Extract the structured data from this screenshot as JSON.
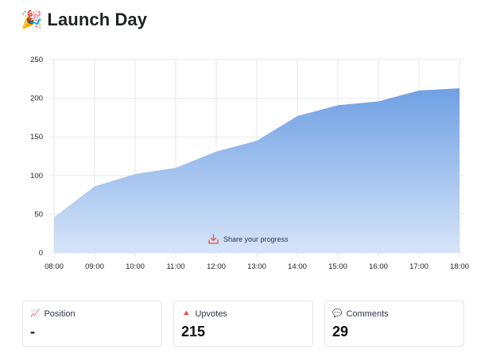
{
  "header": {
    "title": "Launch Day",
    "emoji": "🎉"
  },
  "share": {
    "label": "Share your progress",
    "icon": "download-icon",
    "color": "#e8543f"
  },
  "chart_data": {
    "type": "area",
    "categories": [
      "08:00",
      "09:00",
      "10:00",
      "11:00",
      "12:00",
      "13:00",
      "14:00",
      "15:00",
      "16:00",
      "17:00",
      "18:00"
    ],
    "series": [
      {
        "values": [
          46,
          86,
          102,
          110,
          131,
          145,
          177,
          191,
          196,
          210,
          213
        ]
      }
    ],
    "xlabel": "",
    "ylabel": "",
    "yticks": [
      "0",
      "50",
      "100",
      "150",
      "200",
      "250"
    ],
    "ylim": [
      0,
      250
    ],
    "grid": true,
    "fill_color_top": "#6fa0e4",
    "fill_color_bottom": "#d6e4f8"
  },
  "stats": [
    {
      "icon": "chart-icon",
      "glyph": "📈",
      "label": "Position",
      "value": "-"
    },
    {
      "icon": "triangle-up-icon",
      "glyph": "🔺",
      "label": "Upvotes",
      "value": "215"
    },
    {
      "icon": "speech-bubble-icon",
      "glyph": "💬",
      "label": "Comments",
      "value": "29"
    }
  ]
}
